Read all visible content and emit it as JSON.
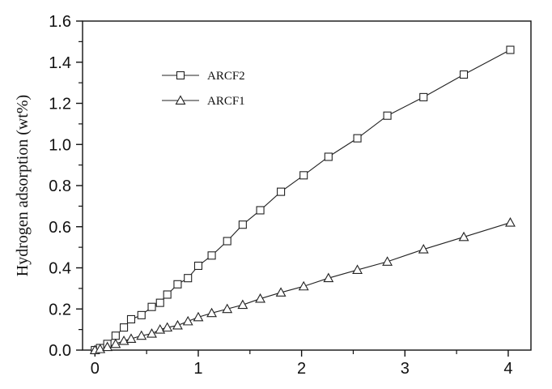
{
  "chart_data": {
    "type": "line",
    "title": "",
    "xlabel": "",
    "ylabel": "Hydrogen adsorption (wt%)",
    "xlim": [
      -0.12,
      4.22
    ],
    "ylim": [
      0,
      1.6
    ],
    "xticks": [
      0,
      1,
      2,
      3,
      4
    ],
    "xtick_labels": [
      "0",
      "1",
      "2",
      "3",
      "4"
    ],
    "yticks": [
      0,
      0.2,
      0.4,
      0.6,
      0.8,
      1.0,
      1.2,
      1.4,
      1.6
    ],
    "ytick_labels": [
      "0.0",
      "0.2",
      "0.4",
      "0.6",
      "0.8",
      "1.0",
      "1.2",
      "1.4",
      "1.6"
    ],
    "grid": false,
    "legend_position": "upper-left",
    "series": [
      {
        "name": "ARCF2",
        "marker": "square",
        "color": "#222222",
        "x": [
          0.0,
          0.05,
          0.12,
          0.2,
          0.28,
          0.35,
          0.45,
          0.55,
          0.63,
          0.7,
          0.8,
          0.9,
          1.0,
          1.13,
          1.28,
          1.43,
          1.6,
          1.8,
          2.02,
          2.26,
          2.54,
          2.83,
          3.18,
          3.57,
          4.02
        ],
        "values": [
          0.0,
          0.01,
          0.03,
          0.07,
          0.11,
          0.15,
          0.17,
          0.21,
          0.23,
          0.27,
          0.32,
          0.35,
          0.41,
          0.46,
          0.53,
          0.61,
          0.68,
          0.77,
          0.85,
          0.94,
          1.03,
          1.14,
          1.23,
          1.34,
          1.46
        ]
      },
      {
        "name": "ARCF1",
        "marker": "triangle",
        "color": "#222222",
        "x": [
          0.0,
          0.05,
          0.12,
          0.2,
          0.28,
          0.35,
          0.45,
          0.55,
          0.63,
          0.7,
          0.8,
          0.9,
          1.0,
          1.13,
          1.28,
          1.43,
          1.6,
          1.8,
          2.02,
          2.26,
          2.54,
          2.83,
          3.18,
          3.57,
          4.02
        ],
        "values": [
          0.0,
          0.005,
          0.015,
          0.03,
          0.045,
          0.055,
          0.07,
          0.08,
          0.1,
          0.11,
          0.12,
          0.14,
          0.16,
          0.18,
          0.2,
          0.22,
          0.25,
          0.28,
          0.31,
          0.35,
          0.39,
          0.43,
          0.49,
          0.55,
          0.62
        ]
      }
    ]
  }
}
